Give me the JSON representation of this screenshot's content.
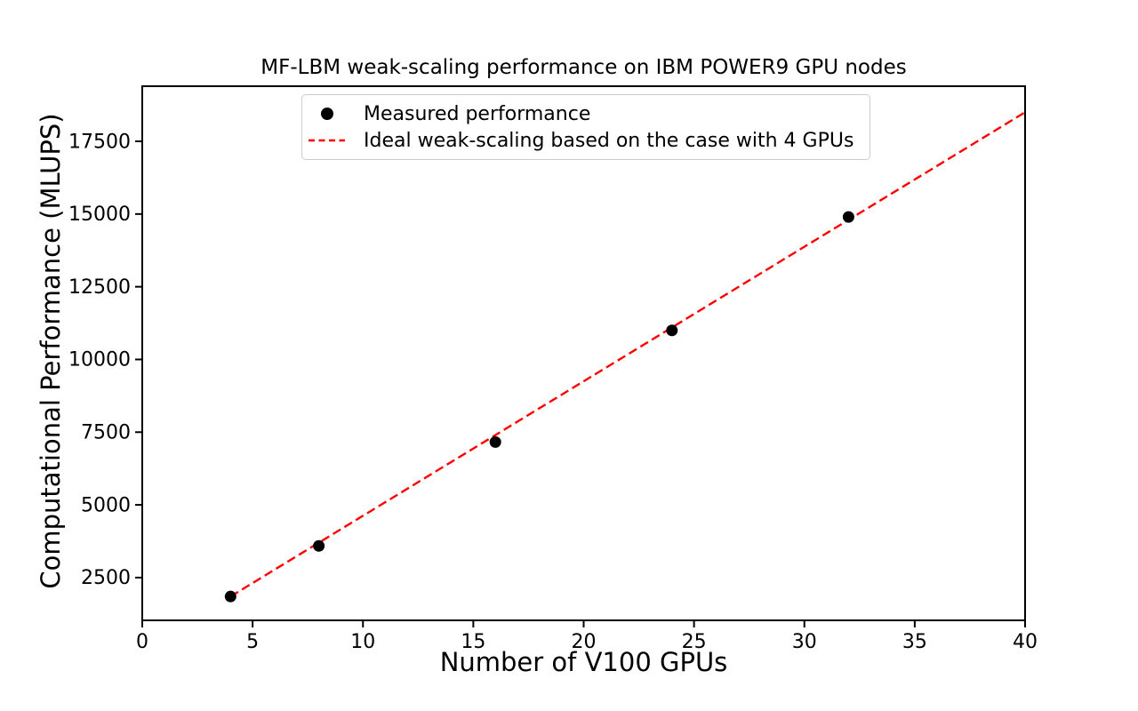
{
  "chart_data": {
    "type": "scatter",
    "title": "MF-LBM weak-scaling performance on IBM POWER9 GPU nodes",
    "xlabel": "Number of V100 GPUs",
    "ylabel": "Computational Performance (MLUPS)",
    "xlim": [
      0,
      40
    ],
    "ylim": [
      1030,
      19395
    ],
    "xticks": [
      0,
      5,
      10,
      15,
      20,
      25,
      30,
      35,
      40
    ],
    "yticks": [
      2500,
      5000,
      7500,
      10000,
      12500,
      15000,
      17500
    ],
    "grid": false,
    "background": "#ffffff",
    "axis_color": "#000000",
    "legend": {
      "position": "upper-left-inside",
      "entries": [
        {
          "label": "Measured performance",
          "marker": "circle",
          "color": "#000000"
        },
        {
          "label": "Ideal weak-scaling based on the case with 4 GPUs",
          "marker": "dashed-line",
          "color": "#ff0000"
        }
      ]
    },
    "series": [
      {
        "name": "Measured performance",
        "type": "scatter",
        "marker": "circle",
        "color": "#000000",
        "x": [
          4,
          8,
          16,
          24,
          32
        ],
        "y": [
          1850,
          3590,
          7160,
          11000,
          14900
        ]
      },
      {
        "name": "Ideal weak-scaling based on the case with 4 GPUs",
        "type": "line",
        "linestyle": "dashed",
        "color": "#ff0000",
        "x": [
          4,
          40
        ],
        "y": [
          1850,
          18500
        ]
      }
    ]
  }
}
